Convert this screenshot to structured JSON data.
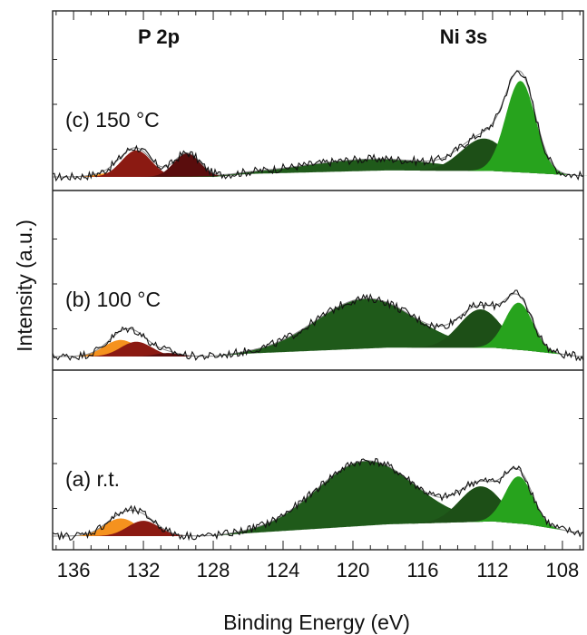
{
  "chart_data": {
    "type": "area",
    "xlabel": "Binding Energy (eV)",
    "ylabel": "Intensity (a.u.)",
    "xlim": [
      137.2,
      106.8
    ],
    "x_reversed": true,
    "xticks": [
      136,
      132,
      128,
      124,
      120,
      116,
      112,
      108
    ],
    "y_ticks_labeled": false,
    "grid": false,
    "annotations": [
      "P 2p",
      "Ni 3s"
    ],
    "panels": [
      {
        "label": "(c) 150 °C",
        "baseline": [
          [
            137,
            0.0
          ],
          [
            128,
            0.0
          ],
          [
            126,
            0.05
          ],
          [
            118,
            0.11
          ],
          [
            112,
            0.1
          ],
          [
            110,
            0.07
          ],
          [
            107,
            0.02
          ]
        ],
        "components": [
          {
            "color": "#f5921e",
            "center": 133.5,
            "height": 0.08,
            "width": 1.0
          },
          {
            "color": "#8b1a12",
            "center": 132.4,
            "height": 0.45,
            "width": 0.85
          },
          {
            "color": "#5a0d0d",
            "center": 129.5,
            "height": 0.4,
            "width": 0.75
          },
          {
            "color": "#1f5a1a",
            "center": 119.0,
            "height": 0.2,
            "width": 3.8
          },
          {
            "color": "#1d4f17",
            "center": 112.5,
            "height": 0.55,
            "width": 1.3
          },
          {
            "color": "#27a31d",
            "center": 110.4,
            "height": 1.55,
            "width": 0.85
          }
        ]
      },
      {
        "label": "(b) 100 °C",
        "baseline": [
          [
            137,
            0.0
          ],
          [
            128,
            0.0
          ],
          [
            126,
            0.05
          ],
          [
            118,
            0.15
          ],
          [
            112,
            0.15
          ],
          [
            110,
            0.1
          ],
          [
            107,
            0.0
          ]
        ],
        "components": [
          {
            "color": "#f5921e",
            "center": 133.3,
            "height": 0.28,
            "width": 0.95
          },
          {
            "color": "#8b1a12",
            "center": 132.4,
            "height": 0.25,
            "width": 0.9
          },
          {
            "color": "#5a0d0d",
            "center": 130.6,
            "height": 0.06,
            "width": 0.7
          },
          {
            "color": "#1f5a1a",
            "center": 119.3,
            "height": 0.85,
            "width": 2.8
          },
          {
            "color": "#1d4f17",
            "center": 112.7,
            "height": 0.65,
            "width": 1.2
          },
          {
            "color": "#27a31d",
            "center": 110.5,
            "height": 0.8,
            "width": 0.8
          }
        ]
      },
      {
        "label": "(a) r.t.",
        "baseline": [
          [
            137,
            0.0
          ],
          [
            128,
            0.0
          ],
          [
            126,
            0.05
          ],
          [
            118,
            0.2
          ],
          [
            112,
            0.25
          ],
          [
            110,
            0.2
          ],
          [
            107,
            0.05
          ]
        ],
        "components": [
          {
            "color": "#f5921e",
            "center": 133.3,
            "height": 0.3,
            "width": 0.95
          },
          {
            "color": "#8b1a12",
            "center": 132.0,
            "height": 0.26,
            "width": 0.9
          },
          {
            "color": "#1f5a1a",
            "center": 119.3,
            "height": 1.1,
            "width": 2.8
          },
          {
            "color": "#1d4f17",
            "center": 112.7,
            "height": 0.6,
            "width": 1.2
          },
          {
            "color": "#27a31d",
            "center": 110.5,
            "height": 0.8,
            "width": 0.8
          }
        ]
      }
    ]
  }
}
